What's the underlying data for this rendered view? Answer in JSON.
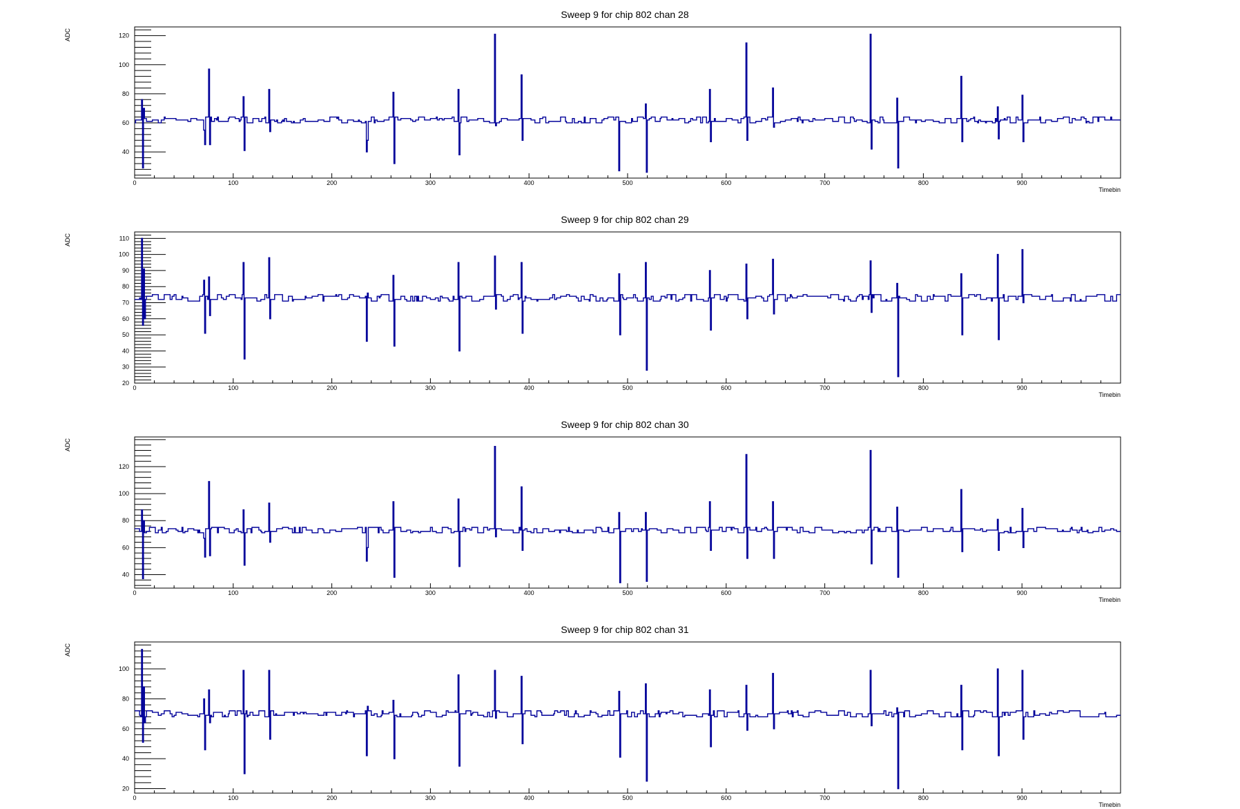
{
  "chart_data": [
    {
      "type": "line",
      "title": "Sweep 9 for chip 802 chan 28",
      "xlabel": "Timebin",
      "ylabel": "ADC",
      "xlim": [
        0,
        1000
      ],
      "ylim": [
        22,
        126
      ],
      "xticks": [
        0,
        100,
        200,
        300,
        400,
        500,
        600,
        700,
        800,
        900
      ],
      "yticks": [
        40,
        60,
        80,
        100,
        120
      ],
      "line_color": "#000099",
      "baseline": 62,
      "spikes": [
        {
          "x": 7,
          "values": [
            76,
            29,
            70
          ]
        },
        {
          "x": 70,
          "values": [
            55,
            45
          ]
        },
        {
          "x": 75,
          "values": [
            97,
            45
          ]
        },
        {
          "x": 110,
          "values": [
            78,
            41
          ]
        },
        {
          "x": 136,
          "values": [
            83,
            54
          ]
        },
        {
          "x": 235,
          "values": [
            40,
            48
          ]
        },
        {
          "x": 262,
          "values": [
            81,
            32
          ]
        },
        {
          "x": 328,
          "values": [
            83,
            38
          ]
        },
        {
          "x": 365,
          "values": [
            121,
            58
          ]
        },
        {
          "x": 392,
          "values": [
            93,
            48
          ]
        },
        {
          "x": 491,
          "values": [
            27
          ]
        },
        {
          "x": 518,
          "values": [
            73,
            26
          ]
        },
        {
          "x": 583,
          "values": [
            83,
            47
          ]
        },
        {
          "x": 620,
          "values": [
            115,
            48
          ]
        },
        {
          "x": 647,
          "values": [
            84,
            57
          ]
        },
        {
          "x": 746,
          "values": [
            121,
            42
          ]
        },
        {
          "x": 773,
          "values": [
            77,
            29
          ]
        },
        {
          "x": 838,
          "values": [
            92,
            47
          ]
        },
        {
          "x": 875,
          "values": [
            71,
            49
          ]
        },
        {
          "x": 900,
          "values": [
            79,
            47
          ]
        }
      ]
    },
    {
      "type": "line",
      "title": "Sweep 9 for chip 802 chan 29",
      "xlabel": "Timebin",
      "ylabel": "ADC",
      "xlim": [
        0,
        1000
      ],
      "ylim": [
        20,
        114
      ],
      "xticks": [
        0,
        100,
        200,
        300,
        400,
        500,
        600,
        700,
        800,
        900
      ],
      "yticks": [
        20,
        30,
        40,
        50,
        60,
        70,
        80,
        90,
        100,
        110
      ],
      "line_color": "#000099",
      "baseline": 73,
      "spikes": [
        {
          "x": 7,
          "values": [
            110,
            56,
            91,
            60
          ]
        },
        {
          "x": 70,
          "values": [
            84,
            51
          ]
        },
        {
          "x": 75,
          "values": [
            86,
            62
          ]
        },
        {
          "x": 110,
          "values": [
            95,
            35
          ]
        },
        {
          "x": 136,
          "values": [
            98,
            60
          ]
        },
        {
          "x": 235,
          "values": [
            46,
            76
          ]
        },
        {
          "x": 262,
          "values": [
            87,
            43
          ]
        },
        {
          "x": 328,
          "values": [
            95,
            40
          ]
        },
        {
          "x": 365,
          "values": [
            99,
            66
          ]
        },
        {
          "x": 392,
          "values": [
            95,
            51
          ]
        },
        {
          "x": 491,
          "values": [
            88,
            50
          ]
        },
        {
          "x": 518,
          "values": [
            95,
            28
          ]
        },
        {
          "x": 583,
          "values": [
            90,
            53
          ]
        },
        {
          "x": 620,
          "values": [
            94,
            60
          ]
        },
        {
          "x": 647,
          "values": [
            97,
            63
          ]
        },
        {
          "x": 746,
          "values": [
            96,
            64
          ]
        },
        {
          "x": 773,
          "values": [
            82,
            24
          ]
        },
        {
          "x": 838,
          "values": [
            88,
            50
          ]
        },
        {
          "x": 875,
          "values": [
            100,
            47
          ]
        },
        {
          "x": 900,
          "values": [
            103,
            70
          ]
        }
      ]
    },
    {
      "type": "line",
      "title": "Sweep 9 for chip 802 chan 30",
      "xlabel": "Timebin",
      "ylabel": "ADC",
      "xlim": [
        0,
        1000
      ],
      "ylim": [
        30,
        142
      ],
      "xticks": [
        0,
        100,
        200,
        300,
        400,
        500,
        600,
        700,
        800,
        900
      ],
      "yticks": [
        40,
        60,
        80,
        100,
        120
      ],
      "line_color": "#000099",
      "baseline": 73,
      "spikes": [
        {
          "x": 7,
          "values": [
            88,
            37,
            80
          ]
        },
        {
          "x": 70,
          "values": [
            67,
            53
          ]
        },
        {
          "x": 75,
          "values": [
            109,
            54
          ]
        },
        {
          "x": 110,
          "values": [
            88,
            47
          ]
        },
        {
          "x": 136,
          "values": [
            93,
            64
          ]
        },
        {
          "x": 235,
          "values": [
            50,
            60
          ]
        },
        {
          "x": 262,
          "values": [
            94,
            38
          ]
        },
        {
          "x": 328,
          "values": [
            96,
            46
          ]
        },
        {
          "x": 365,
          "values": [
            135,
            68
          ]
        },
        {
          "x": 392,
          "values": [
            105,
            58
          ]
        },
        {
          "x": 491,
          "values": [
            86,
            34
          ]
        },
        {
          "x": 518,
          "values": [
            86,
            35
          ]
        },
        {
          "x": 583,
          "values": [
            94,
            58
          ]
        },
        {
          "x": 620,
          "values": [
            129,
            52
          ]
        },
        {
          "x": 647,
          "values": [
            94,
            52
          ]
        },
        {
          "x": 746,
          "values": [
            132,
            48
          ]
        },
        {
          "x": 773,
          "values": [
            90,
            38
          ]
        },
        {
          "x": 838,
          "values": [
            103,
            57
          ]
        },
        {
          "x": 875,
          "values": [
            81,
            58
          ]
        },
        {
          "x": 900,
          "values": [
            89,
            60
          ]
        }
      ]
    },
    {
      "type": "line",
      "title": "Sweep 9 for chip 802 chan 31",
      "xlabel": "Timebin",
      "ylabel": "ADC",
      "xlim": [
        0,
        1000
      ],
      "ylim": [
        17,
        118
      ],
      "xticks": [
        0,
        100,
        200,
        300,
        400,
        500,
        600,
        700,
        800,
        900
      ],
      "yticks": [
        20,
        40,
        60,
        80,
        100
      ],
      "line_color": "#000099",
      "baseline": 70,
      "spikes": [
        {
          "x": 7,
          "values": [
            113,
            51,
            88,
            64
          ]
        },
        {
          "x": 70,
          "values": [
            80,
            46
          ]
        },
        {
          "x": 75,
          "values": [
            86,
            64
          ]
        },
        {
          "x": 110,
          "values": [
            99,
            30
          ]
        },
        {
          "x": 136,
          "values": [
            99,
            53
          ]
        },
        {
          "x": 235,
          "values": [
            42,
            75
          ]
        },
        {
          "x": 262,
          "values": [
            79,
            40
          ]
        },
        {
          "x": 328,
          "values": [
            96,
            35
          ]
        },
        {
          "x": 365,
          "values": [
            99,
            67
          ]
        },
        {
          "x": 392,
          "values": [
            95,
            50
          ]
        },
        {
          "x": 491,
          "values": [
            85,
            41
          ]
        },
        {
          "x": 518,
          "values": [
            90,
            25
          ]
        },
        {
          "x": 583,
          "values": [
            86,
            48
          ]
        },
        {
          "x": 620,
          "values": [
            89,
            59
          ]
        },
        {
          "x": 647,
          "values": [
            97,
            60
          ]
        },
        {
          "x": 746,
          "values": [
            99,
            62
          ]
        },
        {
          "x": 773,
          "values": [
            74,
            20
          ]
        },
        {
          "x": 838,
          "values": [
            89,
            46
          ]
        },
        {
          "x": 875,
          "values": [
            100,
            42
          ]
        },
        {
          "x": 900,
          "values": [
            99,
            53
          ]
        }
      ]
    }
  ]
}
